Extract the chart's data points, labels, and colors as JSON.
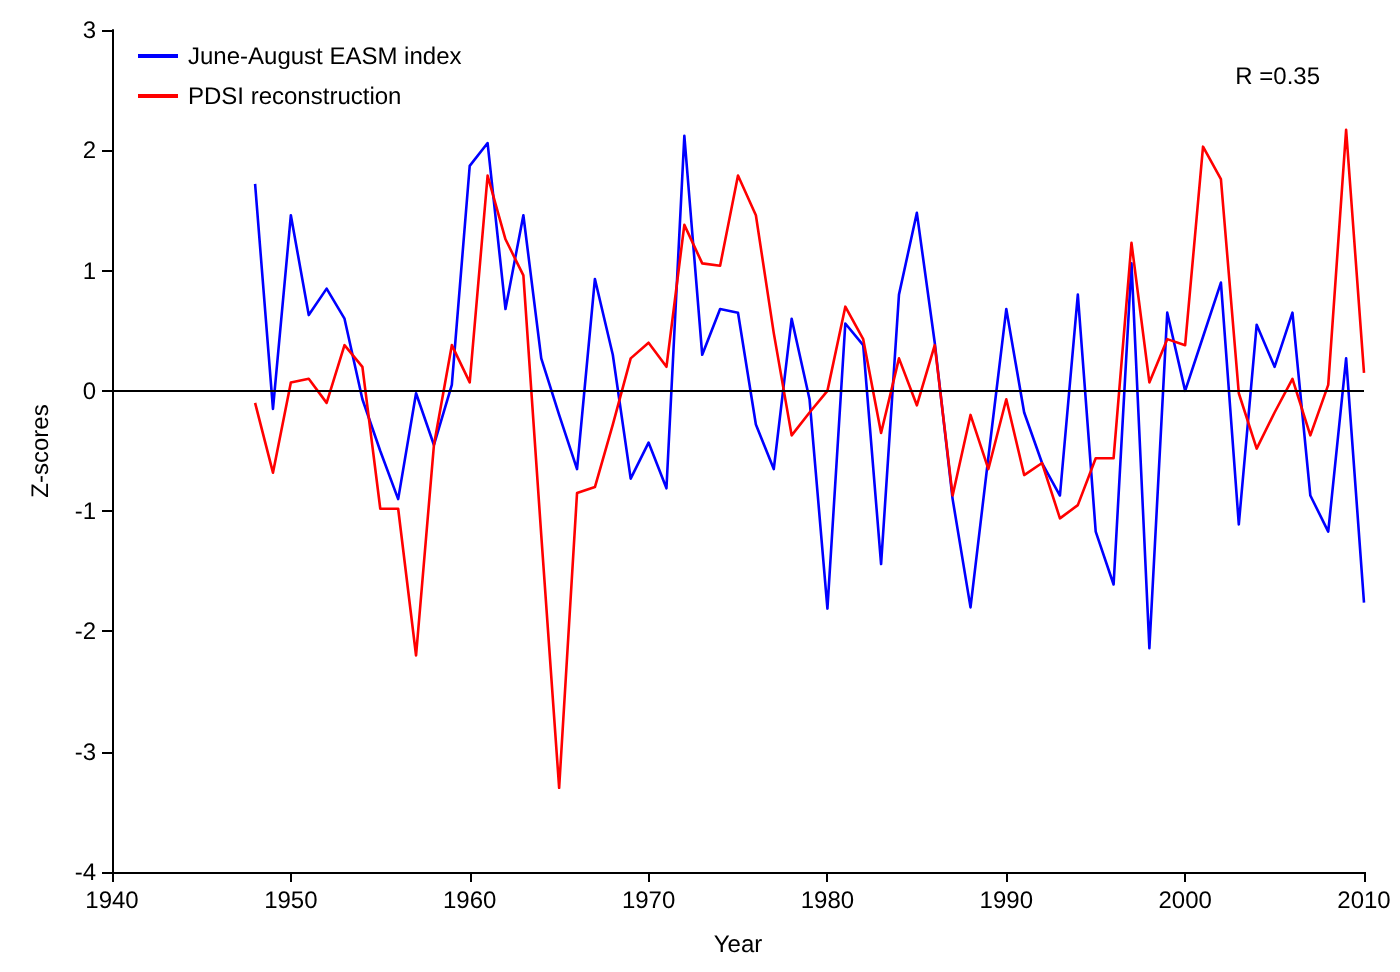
{
  "chart_data": {
    "type": "line",
    "xlabel": "Year",
    "ylabel": "Z-scores",
    "annotations": [
      "R =0.35"
    ],
    "x": [
      1948,
      1949,
      1950,
      1951,
      1952,
      1953,
      1954,
      1955,
      1956,
      1957,
      1958,
      1959,
      1960,
      1961,
      1962,
      1963,
      1964,
      1965,
      1966,
      1967,
      1968,
      1969,
      1970,
      1971,
      1972,
      1973,
      1974,
      1975,
      1976,
      1977,
      1978,
      1979,
      1980,
      1981,
      1982,
      1983,
      1984,
      1985,
      1986,
      1987,
      1988,
      1989,
      1990,
      1991,
      1992,
      1993,
      1994,
      1995,
      1996,
      1997,
      1998,
      1999,
      2000,
      2001,
      2002,
      2003,
      2004,
      2005,
      2006,
      2007,
      2008,
      2009,
      2010
    ],
    "series": [
      {
        "name": "June-August EASM index",
        "color": "#0000ff",
        "values": [
          1.72,
          -0.15,
          1.46,
          0.63,
          0.85,
          0.6,
          -0.07,
          -0.5,
          -0.9,
          -0.02,
          -0.45,
          0.05,
          1.87,
          2.06,
          0.68,
          1.46,
          0.27,
          -0.2,
          -0.65,
          0.93,
          0.3,
          -0.73,
          -0.43,
          -0.81,
          2.12,
          0.3,
          0.68,
          0.65,
          -0.28,
          -0.65,
          0.6,
          -0.07,
          -1.81,
          0.56,
          0.38,
          -1.44,
          0.8,
          1.48,
          0.4,
          -0.9,
          -1.8,
          -0.55,
          0.68,
          -0.18,
          -0.6,
          -0.87,
          0.8,
          -1.17,
          -1.61,
          1.06,
          -2.14,
          0.65,
          0,
          0.45,
          0.9,
          -1.11,
          0.55,
          0.2,
          0.65,
          -0.87,
          -1.17,
          0.27,
          -1.76
        ]
      },
      {
        "name": "PDSI reconstruction",
        "color": "#ff0000",
        "values": [
          -0.1,
          -0.68,
          0.07,
          0.1,
          -0.1,
          0.38,
          0.2,
          -0.98,
          -0.98,
          -2.2,
          -0.45,
          0.38,
          0.07,
          1.79,
          1.26,
          0.96,
          -1.2,
          -3.3,
          -0.85,
          -0.8,
          -0.28,
          0.27,
          0.4,
          0.2,
          1.38,
          1.06,
          1.04,
          1.79,
          1.46,
          0.48,
          -0.37,
          -0.18,
          0,
          0.7,
          0.43,
          -0.35,
          0.27,
          -0.12,
          0.38,
          -0.87,
          -0.2,
          -0.65,
          -0.07,
          -0.7,
          -0.6,
          -1.06,
          -0.95,
          -0.56,
          -0.56,
          1.23,
          0.07,
          0.43,
          0.38,
          2.03,
          1.76,
          -0.02,
          -0.48,
          -0.18,
          0.1,
          -0.37,
          0.05,
          2.17,
          0.15
        ]
      }
    ],
    "xlim": [
      1940,
      2010
    ],
    "xticks": [
      1940,
      1950,
      1960,
      1970,
      1980,
      1990,
      2000,
      2010
    ],
    "ylim": [
      -4,
      3
    ],
    "yticks": [
      -4,
      -3,
      -2,
      -1,
      0,
      1,
      2,
      3
    ],
    "ref_lines": [
      {
        "axis": "y",
        "value": 0,
        "color": "#000000"
      }
    ],
    "grid": false,
    "legend": "top left",
    "marker": "none",
    "line_style": "solid"
  }
}
